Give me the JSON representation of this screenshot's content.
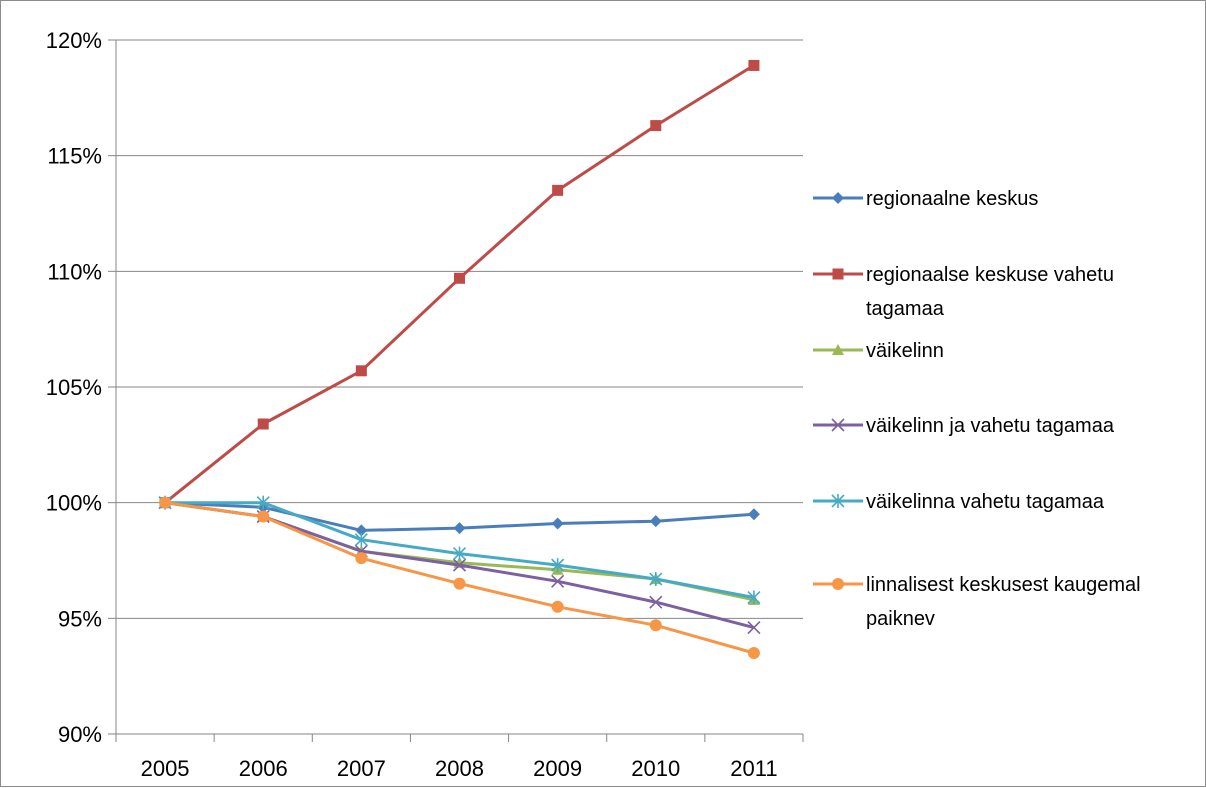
{
  "chart_data": {
    "type": "line",
    "title": "",
    "xlabel": "",
    "ylabel": "",
    "x": [
      "2005",
      "2006",
      "2007",
      "2008",
      "2009",
      "2010",
      "2011"
    ],
    "ylim": [
      90,
      120
    ],
    "yticks": [
      90,
      95,
      100,
      105,
      110,
      115,
      120
    ],
    "ytick_labels": [
      "90%",
      "95%",
      "100%",
      "105%",
      "110%",
      "115%",
      "120%"
    ],
    "grid": "horizontal",
    "legend_position": "right",
    "series": [
      {
        "name": "regionaalne keskus",
        "color": "#4a7ebb",
        "marker": "diamond",
        "values": [
          100.0,
          99.8,
          98.8,
          98.9,
          99.1,
          99.2,
          99.5
        ]
      },
      {
        "name": "regionaalse keskuse vahetu tagamaa",
        "color": "#be4b48",
        "marker": "square",
        "values": [
          100.0,
          103.4,
          105.7,
          109.7,
          113.5,
          116.3,
          118.9
        ]
      },
      {
        "name": "väikelinn",
        "color": "#98b954",
        "marker": "triangle",
        "values": [
          100.0,
          99.4,
          97.9,
          97.4,
          97.1,
          96.7,
          95.8
        ]
      },
      {
        "name": "väikelinn ja vahetu tagamaa",
        "color": "#7d60a0",
        "marker": "x",
        "values": [
          100.0,
          99.4,
          97.9,
          97.3,
          96.6,
          95.7,
          94.6
        ]
      },
      {
        "name": "väikelinna vahetu tagamaa",
        "color": "#46aac5",
        "marker": "star",
        "values": [
          100.0,
          100.0,
          98.4,
          97.8,
          97.3,
          96.7,
          95.9
        ]
      },
      {
        "name": "linnalisest keskusest kaugemal paiknev",
        "color": "#f79646",
        "marker": "circle",
        "values": [
          100.0,
          99.4,
          97.6,
          96.5,
          95.5,
          94.7,
          93.5
        ]
      }
    ]
  }
}
